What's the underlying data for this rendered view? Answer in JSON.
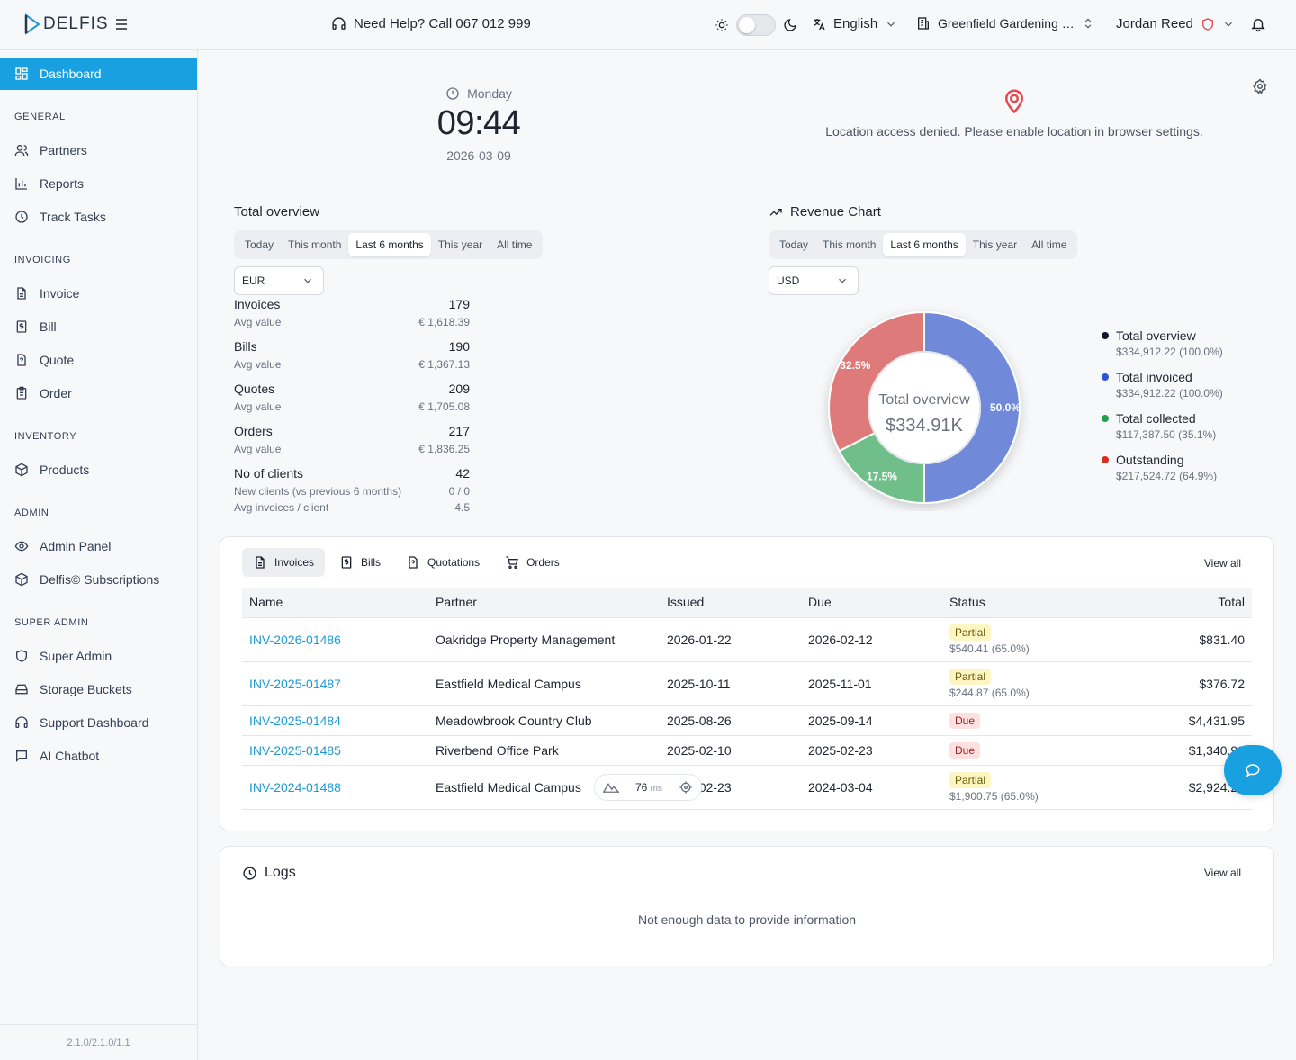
{
  "app": {
    "logo": "DELFIS",
    "version": "2.1.0/2.1.0/1.1"
  },
  "header": {
    "help": "Need Help? Call 067 012 999",
    "language": "English",
    "company": "Greenfield Gardening …",
    "user": "Jordan Reed"
  },
  "sidebar": {
    "dashboard": "Dashboard",
    "sections": {
      "general": "GENERAL",
      "invoicing": "INVOICING",
      "inventory": "INVENTORY",
      "admin": "ADMIN",
      "super_admin": "SUPER ADMIN"
    },
    "items": {
      "partners": "Partners",
      "reports": "Reports",
      "track_tasks": "Track Tasks",
      "invoice": "Invoice",
      "bill": "Bill",
      "quote": "Quote",
      "order": "Order",
      "products": "Products",
      "admin_panel": "Admin Panel",
      "subscriptions": "Delfis© Subscriptions",
      "super_admin": "Super Admin",
      "storage_buckets": "Storage Buckets",
      "support_dashboard": "Support Dashboard",
      "ai_chatbot": "AI Chatbot"
    }
  },
  "clock": {
    "day": "Monday",
    "time": "09:44",
    "date": "2026-03-09"
  },
  "location": {
    "message": "Location access denied. Please enable location in browser settings."
  },
  "overview": {
    "title": "Total overview",
    "periods": [
      "Today",
      "This month",
      "Last 6 months",
      "This year",
      "All time"
    ],
    "selected_period": "Last 6 months",
    "currency": "EUR",
    "invoices_label": "Invoices",
    "invoices_count": "179",
    "invoices_avg_label": "Avg value",
    "invoices_avg": "€ 1,618.39",
    "bills_label": "Bills",
    "bills_count": "190",
    "bills_avg_label": "Avg value",
    "bills_avg": "€ 1,367.13",
    "quotes_label": "Quotes",
    "quotes_count": "209",
    "quotes_avg_label": "Avg value",
    "quotes_avg": "€ 1,705.08",
    "orders_label": "Orders",
    "orders_count": "217",
    "orders_avg_label": "Avg value",
    "orders_avg": "€ 1,836.25",
    "clients_label": "No of clients",
    "clients_count": "42",
    "new_clients_label": "New clients (vs previous 6 months)",
    "new_clients": "0 / 0",
    "avg_inv_label": "Avg invoices / client",
    "avg_inv": "4.5"
  },
  "revenue": {
    "title": "Revenue Chart",
    "periods": [
      "Today",
      "This month",
      "Last 6 months",
      "This year",
      "All time"
    ],
    "currency": "USD",
    "center_label": "Total overview",
    "center_value": "$334.91K",
    "legend": [
      {
        "label": "Total overview",
        "value": "$334,912.22 (100.0%)",
        "color": "#111827"
      },
      {
        "label": "Total invoiced",
        "value": "$334,912.22 (100.0%)",
        "color": "#2f55d4"
      },
      {
        "label": "Total collected",
        "value": "$117,387.50 (35.1%)",
        "color": "#22a04b"
      },
      {
        "label": "Outstanding",
        "value": "$217,524.72 (64.9%)",
        "color": "#d92d20"
      }
    ]
  },
  "chart_data": {
    "type": "pie",
    "categories": [
      "Total invoiced",
      "Total collected",
      "Outstanding"
    ],
    "values": [
      50.0,
      17.5,
      32.5
    ],
    "labels": [
      "50.0%",
      "17.5%",
      "32.5%"
    ],
    "colors": [
      "#6f8ad9",
      "#6fbf8a",
      "#df7a7a"
    ]
  },
  "documents": {
    "tabs": [
      "Invoices",
      "Bills",
      "Quotations",
      "Orders"
    ],
    "view_all": "View all",
    "columns": [
      "Name",
      "Partner",
      "Issued",
      "Due",
      "Status",
      "Total"
    ],
    "rows": [
      {
        "name": "INV-2026-01486",
        "partner": "Oakridge Property Management",
        "issued": "2026-01-22",
        "due": "2026-02-12",
        "status": "Partial",
        "paid": "$540.41 (65.0%)",
        "total": "$831.40"
      },
      {
        "name": "INV-2025-01487",
        "partner": "Eastfield Medical Campus",
        "issued": "2025-10-11",
        "due": "2025-11-01",
        "status": "Partial",
        "paid": "$244.87 (65.0%)",
        "total": "$376.72"
      },
      {
        "name": "INV-2025-01484",
        "partner": "Meadowbrook Country Club",
        "issued": "2025-08-26",
        "due": "2025-09-14",
        "status": "Due",
        "paid": "",
        "total": "$4,431.95"
      },
      {
        "name": "INV-2025-01485",
        "partner": "Riverbend Office Park",
        "issued": "2025-02-10",
        "due": "2025-02-23",
        "status": "Due",
        "paid": "",
        "total": "$1,340.98"
      },
      {
        "name": "INV-2024-01488",
        "partner": "Eastfield Medical Campus",
        "issued": "2024-02-23",
        "due": "2024-03-04",
        "status": "Partial",
        "paid": "$1,900.75 (65.0%)",
        "total": "$2,924.23"
      }
    ]
  },
  "logs": {
    "title": "Logs",
    "view_all": "View all",
    "empty": "Not enough data to provide information"
  },
  "perf": {
    "value": "76",
    "unit": "ms"
  }
}
